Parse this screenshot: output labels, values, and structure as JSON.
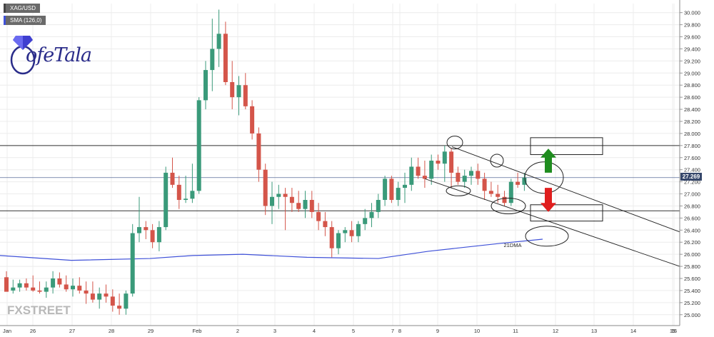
{
  "chart_data": {
    "type": "candlestick",
    "symbol": "XAG/USD",
    "indicator": "SMA (126,0)",
    "annotation_label": "21DMA",
    "last_price_label": "27.269",
    "y_ticks": [
      "30.000",
      "29.800",
      "29.600",
      "29.400",
      "29.200",
      "29.000",
      "28.800",
      "28.600",
      "28.400",
      "28.200",
      "28.000",
      "27.800",
      "27.600",
      "27.400",
      "27.200",
      "27.000",
      "26.800",
      "26.600",
      "26.400",
      "26.200",
      "26.000",
      "25.800",
      "25.600",
      "25.400",
      "25.200",
      "25.000"
    ],
    "ylim": [
      24.82,
      30.15
    ],
    "x_tick_labels": [
      "Jan",
      "26",
      "27",
      "28",
      "29",
      "Feb",
      "2",
      "3",
      "4",
      "5",
      "7",
      "8",
      "9",
      "10",
      "11",
      "12",
      "13",
      "14",
      "15",
      "16"
    ],
    "horizontal_levels": [
      27.8,
      27.269,
      26.72
    ],
    "candles": [
      [
        25.62,
        25.72,
        25.4,
        25.38
      ],
      [
        25.4,
        25.58,
        25.35,
        25.45
      ],
      [
        25.45,
        25.58,
        25.38,
        25.52
      ],
      [
        25.52,
        25.6,
        25.4,
        25.45
      ],
      [
        25.45,
        25.65,
        25.38,
        25.4
      ],
      [
        25.4,
        25.55,
        25.35,
        25.38
      ],
      [
        25.38,
        25.55,
        25.28,
        25.45
      ],
      [
        25.45,
        25.72,
        25.35,
        25.6
      ],
      [
        25.6,
        25.7,
        25.45,
        25.5
      ],
      [
        25.5,
        25.65,
        25.38,
        25.42
      ],
      [
        25.42,
        25.6,
        25.3,
        25.48
      ],
      [
        25.48,
        25.62,
        25.35,
        25.4
      ],
      [
        25.4,
        25.55,
        25.18,
        25.35
      ],
      [
        25.35,
        25.55,
        25.2,
        25.25
      ],
      [
        25.25,
        25.45,
        25.1,
        25.35
      ],
      [
        25.35,
        25.5,
        25.2,
        25.3
      ],
      [
        25.3,
        25.42,
        25.05,
        25.15
      ],
      [
        25.15,
        25.35,
        25.0,
        25.1
      ],
      [
        25.1,
        25.4,
        25.0,
        25.35
      ],
      [
        25.35,
        26.5,
        25.3,
        26.35
      ],
      [
        26.35,
        26.95,
        26.2,
        26.45
      ],
      [
        26.45,
        26.55,
        26.25,
        26.4
      ],
      [
        26.4,
        26.5,
        26.1,
        26.2
      ],
      [
        26.2,
        26.55,
        26.05,
        26.45
      ],
      [
        26.45,
        27.45,
        26.4,
        27.35
      ],
      [
        27.35,
        27.6,
        27.1,
        27.15
      ],
      [
        27.15,
        27.3,
        26.75,
        26.9
      ],
      [
        26.9,
        27.3,
        26.85,
        26.92
      ],
      [
        26.92,
        27.5,
        26.85,
        27.05
      ],
      [
        27.05,
        28.6,
        27.0,
        28.55
      ],
      [
        28.55,
        29.2,
        28.4,
        29.05
      ],
      [
        29.05,
        29.9,
        28.7,
        29.4
      ],
      [
        29.4,
        30.05,
        29.1,
        29.65
      ],
      [
        29.65,
        29.85,
        28.8,
        28.85
      ],
      [
        28.85,
        29.2,
        28.4,
        28.6
      ],
      [
        28.6,
        28.95,
        28.3,
        28.8
      ],
      [
        28.8,
        29.0,
        28.4,
        28.45
      ],
      [
        28.45,
        28.55,
        27.9,
        28.0
      ],
      [
        28.0,
        28.1,
        27.2,
        27.4
      ],
      [
        27.4,
        27.5,
        26.65,
        26.8
      ],
      [
        26.8,
        27.2,
        26.5,
        26.95
      ],
      [
        26.95,
        27.15,
        26.75,
        27.0
      ],
      [
        27.0,
        27.1,
        26.4,
        26.95
      ],
      [
        26.95,
        27.1,
        26.7,
        26.85
      ],
      [
        26.85,
        27.05,
        26.7,
        26.75
      ],
      [
        26.75,
        27.05,
        26.6,
        26.9
      ],
      [
        26.9,
        27.05,
        26.6,
        26.7
      ],
      [
        26.7,
        26.85,
        26.4,
        26.55
      ],
      [
        26.55,
        26.7,
        26.3,
        26.45
      ],
      [
        26.45,
        26.55,
        25.95,
        26.1
      ],
      [
        26.1,
        26.4,
        26.0,
        26.35
      ],
      [
        26.35,
        26.45,
        26.2,
        26.4
      ],
      [
        26.4,
        26.55,
        26.2,
        26.3
      ],
      [
        26.3,
        26.55,
        26.2,
        26.5
      ],
      [
        26.5,
        26.75,
        26.4,
        26.6
      ],
      [
        26.6,
        26.85,
        26.45,
        26.7
      ],
      [
        26.7,
        27.0,
        26.6,
        26.9
      ],
      [
        26.9,
        27.3,
        26.8,
        27.25
      ],
      [
        27.25,
        27.3,
        26.85,
        26.9
      ],
      [
        26.9,
        27.2,
        26.8,
        27.1
      ],
      [
        27.1,
        27.35,
        26.85,
        27.15
      ],
      [
        27.15,
        27.6,
        27.05,
        27.45
      ],
      [
        27.45,
        27.6,
        27.25,
        27.3
      ],
      [
        27.3,
        27.55,
        27.1,
        27.25
      ],
      [
        27.25,
        27.65,
        27.15,
        27.55
      ],
      [
        27.55,
        27.65,
        27.4,
        27.5
      ],
      [
        27.5,
        27.8,
        27.2,
        27.7
      ],
      [
        27.7,
        27.75,
        27.1,
        27.35
      ],
      [
        27.35,
        27.45,
        27.15,
        27.2
      ],
      [
        27.2,
        27.4,
        27.1,
        27.3
      ],
      [
        27.3,
        27.45,
        27.15,
        27.38
      ],
      [
        27.38,
        27.5,
        27.15,
        27.25
      ],
      [
        27.25,
        27.35,
        26.9,
        27.05
      ],
      [
        27.05,
        27.2,
        26.95,
        27.0
      ],
      [
        27.0,
        27.15,
        26.85,
        26.95
      ],
      [
        26.95,
        27.05,
        26.8,
        26.85
      ],
      [
        26.85,
        27.25,
        26.8,
        27.2
      ],
      [
        27.2,
        27.35,
        27.1,
        27.15
      ],
      [
        27.15,
        27.35,
        27.05,
        27.27
      ]
    ],
    "sma_points": [
      [
        0,
        25.98
      ],
      [
        18,
        25.9
      ],
      [
        38,
        25.92
      ],
      [
        49,
        26.0
      ],
      [
        60,
        25.95
      ],
      [
        82,
        25.92
      ],
      [
        95,
        25.95
      ],
      [
        120,
        26.1
      ],
      [
        135,
        26.2
      ],
      [
        138,
        26.25
      ]
    ]
  }
}
